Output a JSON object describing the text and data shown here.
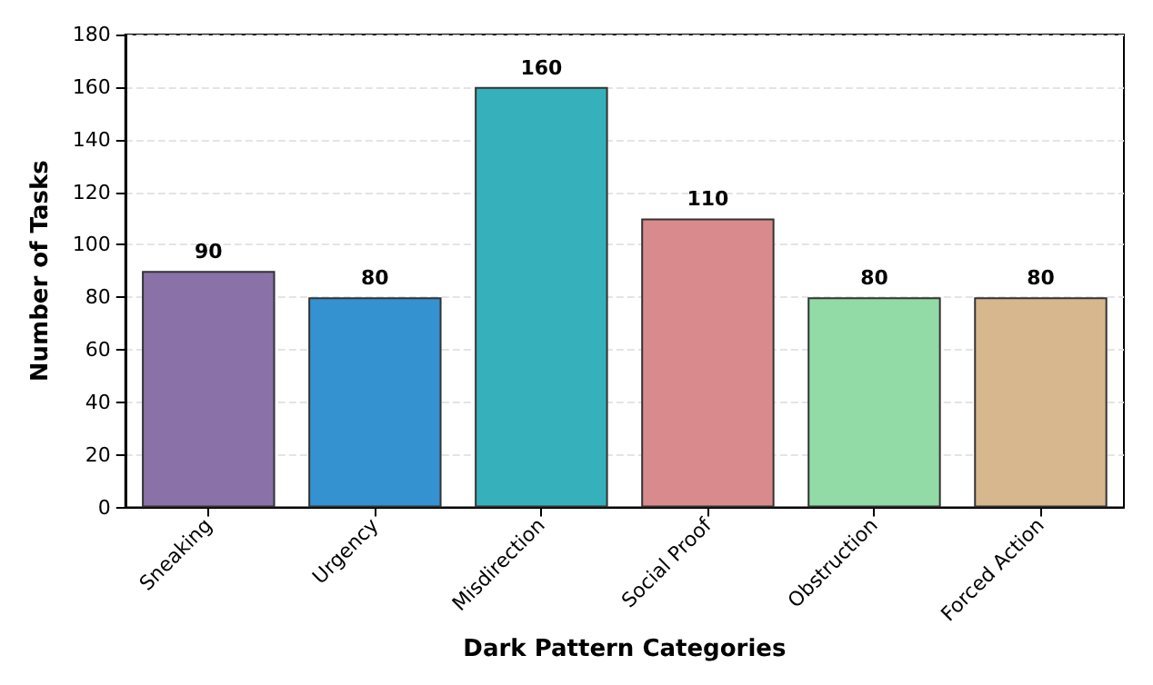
{
  "chart_data": {
    "type": "bar",
    "xlabel": "Dark Pattern Categories",
    "ylabel": "Number of Tasks",
    "categories": [
      "Sneaking",
      "Urgency",
      "Misdirection",
      "Social Proof",
      "Obstruction",
      "Forced Action"
    ],
    "values": [
      90,
      80,
      160,
      110,
      80,
      80
    ],
    "colors": [
      "#8a72a8",
      "#3492d0",
      "#36b1bb",
      "#d88a8d",
      "#92dba6",
      "#d6b78e"
    ],
    "ylim": [
      0,
      180
    ],
    "yticks": [
      0,
      20,
      40,
      60,
      80,
      100,
      120,
      140,
      160,
      180
    ],
    "grid": "y",
    "data_labels": true
  }
}
